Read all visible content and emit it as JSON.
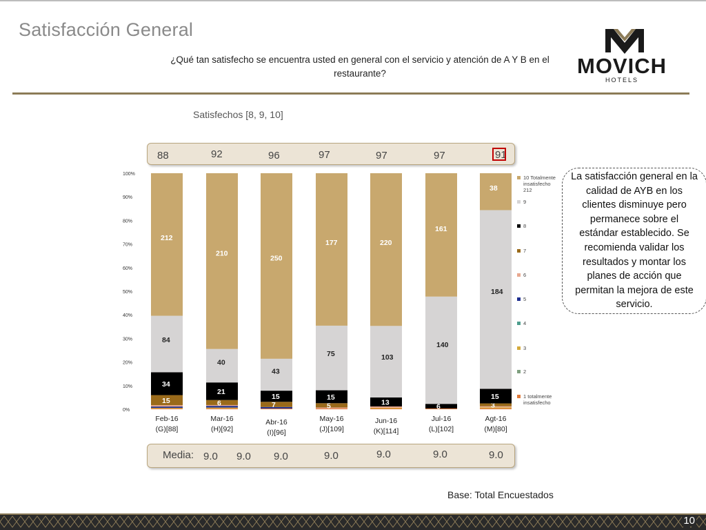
{
  "slide": {
    "title": "Satisfacción General",
    "question": "¿Qué tan satisfecho se encuentra usted en general con el servicio y atención de A Y B en el restaurante?",
    "subtitle": "Satisfechos [8, 9, 10]",
    "mean_label": "Media:",
    "callout": "La satisfacción general en la calidad de AYB en los clientes disminuye pero permanece sobre el estándar establecido. Se recomienda validar los resultados y montar los planes de acción que permitan la mejora de este servicio.",
    "base": "Base: Total Encuestados",
    "page_number": "10",
    "logo": {
      "brand": "MOVICH",
      "sub": "HOTELS",
      "letter": "M"
    },
    "colors": {
      "accent": "#8c7b57",
      "highlight": "#c00000"
    }
  },
  "satisfied": [
    "88",
    "92",
    "96",
    "97",
    "97",
    "97",
    "91"
  ],
  "means": [
    "9.0",
    "9.0",
    "9.0",
    "9.0",
    "9.0",
    "9.0",
    "9.0"
  ],
  "chart_data": {
    "type": "bar",
    "stacked": true,
    "normalized": true,
    "categories": [
      {
        "month": "Feb-16",
        "code": "(G)[88]"
      },
      {
        "month": "Mar-16",
        "code": "(H)[92]"
      },
      {
        "month": "Abr-16",
        "code": "(I)[96]"
      },
      {
        "month": "May-16",
        "code": "(J)[109]"
      },
      {
        "month": "Jun-16",
        "code": "(K)[114]"
      },
      {
        "month": "Jul-16",
        "code": "(L)[102]"
      },
      {
        "month": "Agt-16",
        "code": "(M)[80]"
      }
    ],
    "y_ticks": [
      "0%",
      "10%",
      "20%",
      "30%",
      "40%",
      "50%",
      "60%",
      "70%",
      "80%",
      "90%",
      "100%"
    ],
    "ylim": [
      0,
      100
    ],
    "legend_position": "right",
    "series": [
      {
        "name": "1 totalmente insatisfecho",
        "color": "#e07a3a",
        "values": [
          1,
          1,
          1,
          1,
          1,
          1,
          1
        ]
      },
      {
        "name": "2",
        "color": "#7fa07f",
        "values": [
          0,
          0,
          0,
          0,
          0,
          0,
          0
        ]
      },
      {
        "name": "3",
        "color": "#d4aa3c",
        "values": [
          1,
          1,
          0,
          0,
          1,
          0,
          1
        ]
      },
      {
        "name": "4",
        "color": "#4e9e8e",
        "values": [
          0,
          0,
          0,
          0,
          0,
          0,
          0
        ]
      },
      {
        "name": "5",
        "color": "#1f2f8f",
        "values": [
          2,
          2,
          2,
          0,
          0,
          0,
          0
        ]
      },
      {
        "name": "6",
        "color": "#e8a890",
        "values": [
          2,
          1,
          0,
          1,
          2,
          0,
          1
        ]
      },
      {
        "name": "7",
        "color": "#9a6a1a",
        "values": [
          15,
          6,
          7,
          5,
          0,
          0,
          3
        ]
      },
      {
        "name": "8",
        "color": "#000000",
        "values": [
          34,
          21,
          15,
          15,
          13,
          6,
          15
        ]
      },
      {
        "name": "9",
        "color": "#d6d4d4",
        "values": [
          84,
          40,
          43,
          75,
          103,
          140,
          184
        ]
      },
      {
        "name": "10 Totalmente insatisfecho",
        "color": "#c8a86e",
        "values": [
          212,
          210,
          250,
          177,
          220,
          161,
          38
        ]
      }
    ],
    "data_labels": [
      [
        "",
        "",
        "",
        "",
        "",
        "",
        "15",
        "34",
        "84",
        "212"
      ],
      [
        "",
        "",
        "",
        "",
        "",
        "",
        "6",
        "21",
        "40",
        "210"
      ],
      [
        "",
        "",
        "",
        "",
        "",
        "",
        "7",
        "15",
        "43",
        "250"
      ],
      [
        "",
        "",
        "",
        "",
        "",
        "",
        "5",
        "15",
        "75",
        "177"
      ],
      [
        "",
        "",
        "",
        "",
        "",
        "",
        "",
        "13",
        "103",
        "220"
      ],
      [
        "",
        "",
        "",
        "",
        "",
        "",
        "",
        "6",
        "140",
        "161"
      ],
      [
        "",
        "",
        "",
        "",
        "",
        "",
        "3",
        "15",
        "184",
        "38"
      ]
    ],
    "legend_extra": "212"
  }
}
